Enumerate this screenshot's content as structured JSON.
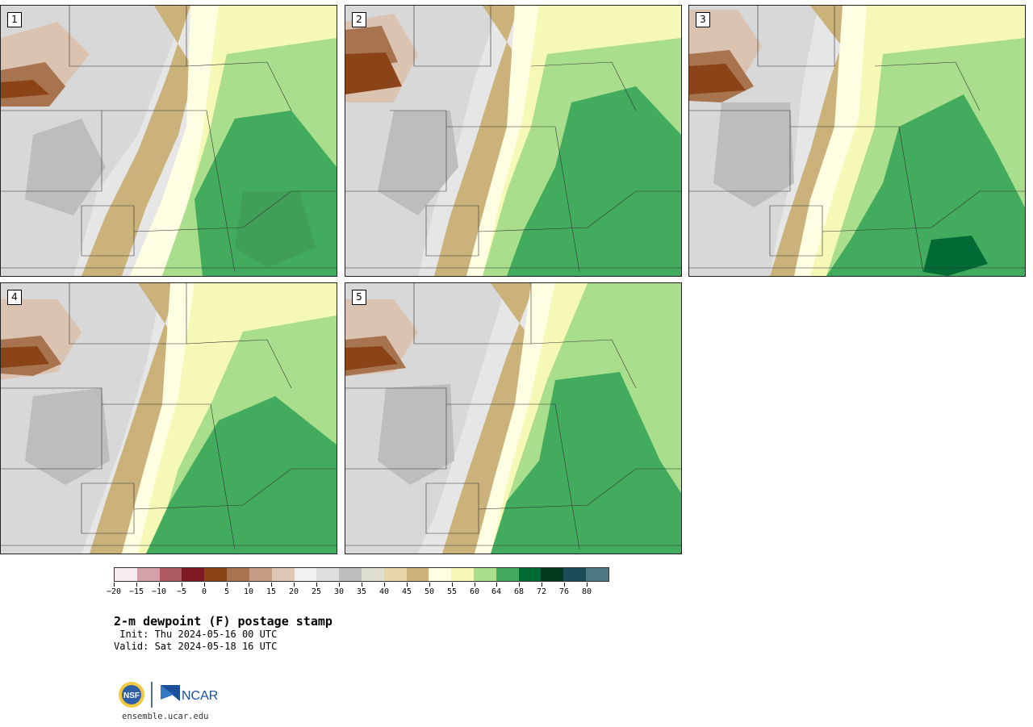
{
  "panels": [
    {
      "label": "1"
    },
    {
      "label": "2"
    },
    {
      "label": "3"
    },
    {
      "label": "4"
    },
    {
      "label": "5"
    }
  ],
  "colorbar": {
    "colors": [
      "#f5ecef",
      "#d3a1a7",
      "#ad5a63",
      "#7e1a22",
      "#8a4418",
      "#a8744f",
      "#c59e85",
      "#e0c8b7",
      "#f1f1f1",
      "#dedede",
      "#bdbdbd",
      "#dfdfcf",
      "#e7d5ab",
      "#cbb27a",
      "#fefee2",
      "#f6f9b5",
      "#a8de8c",
      "#43ab5d",
      "#006b35",
      "#00391e",
      "#1a4c57",
      "#4e7a86"
    ],
    "tick_labels": [
      "−20",
      "−15",
      "−10",
      "−5",
      "0",
      "5",
      "10",
      "15",
      "20",
      "25",
      "30",
      "35",
      "40",
      "45",
      "50",
      "55",
      "60",
      "64",
      "68",
      "72",
      "76",
      "80"
    ]
  },
  "title": "2-m dewpoint (F) postage stamp",
  "init_text": " Init: Thu 2024-05-16 00 UTC",
  "valid_text": "Valid: Sat 2024-05-18 16 UTC",
  "logos": {
    "nsf": "NSF",
    "ncar": "NCAR"
  },
  "website": "ensemble.ucar.edu"
}
